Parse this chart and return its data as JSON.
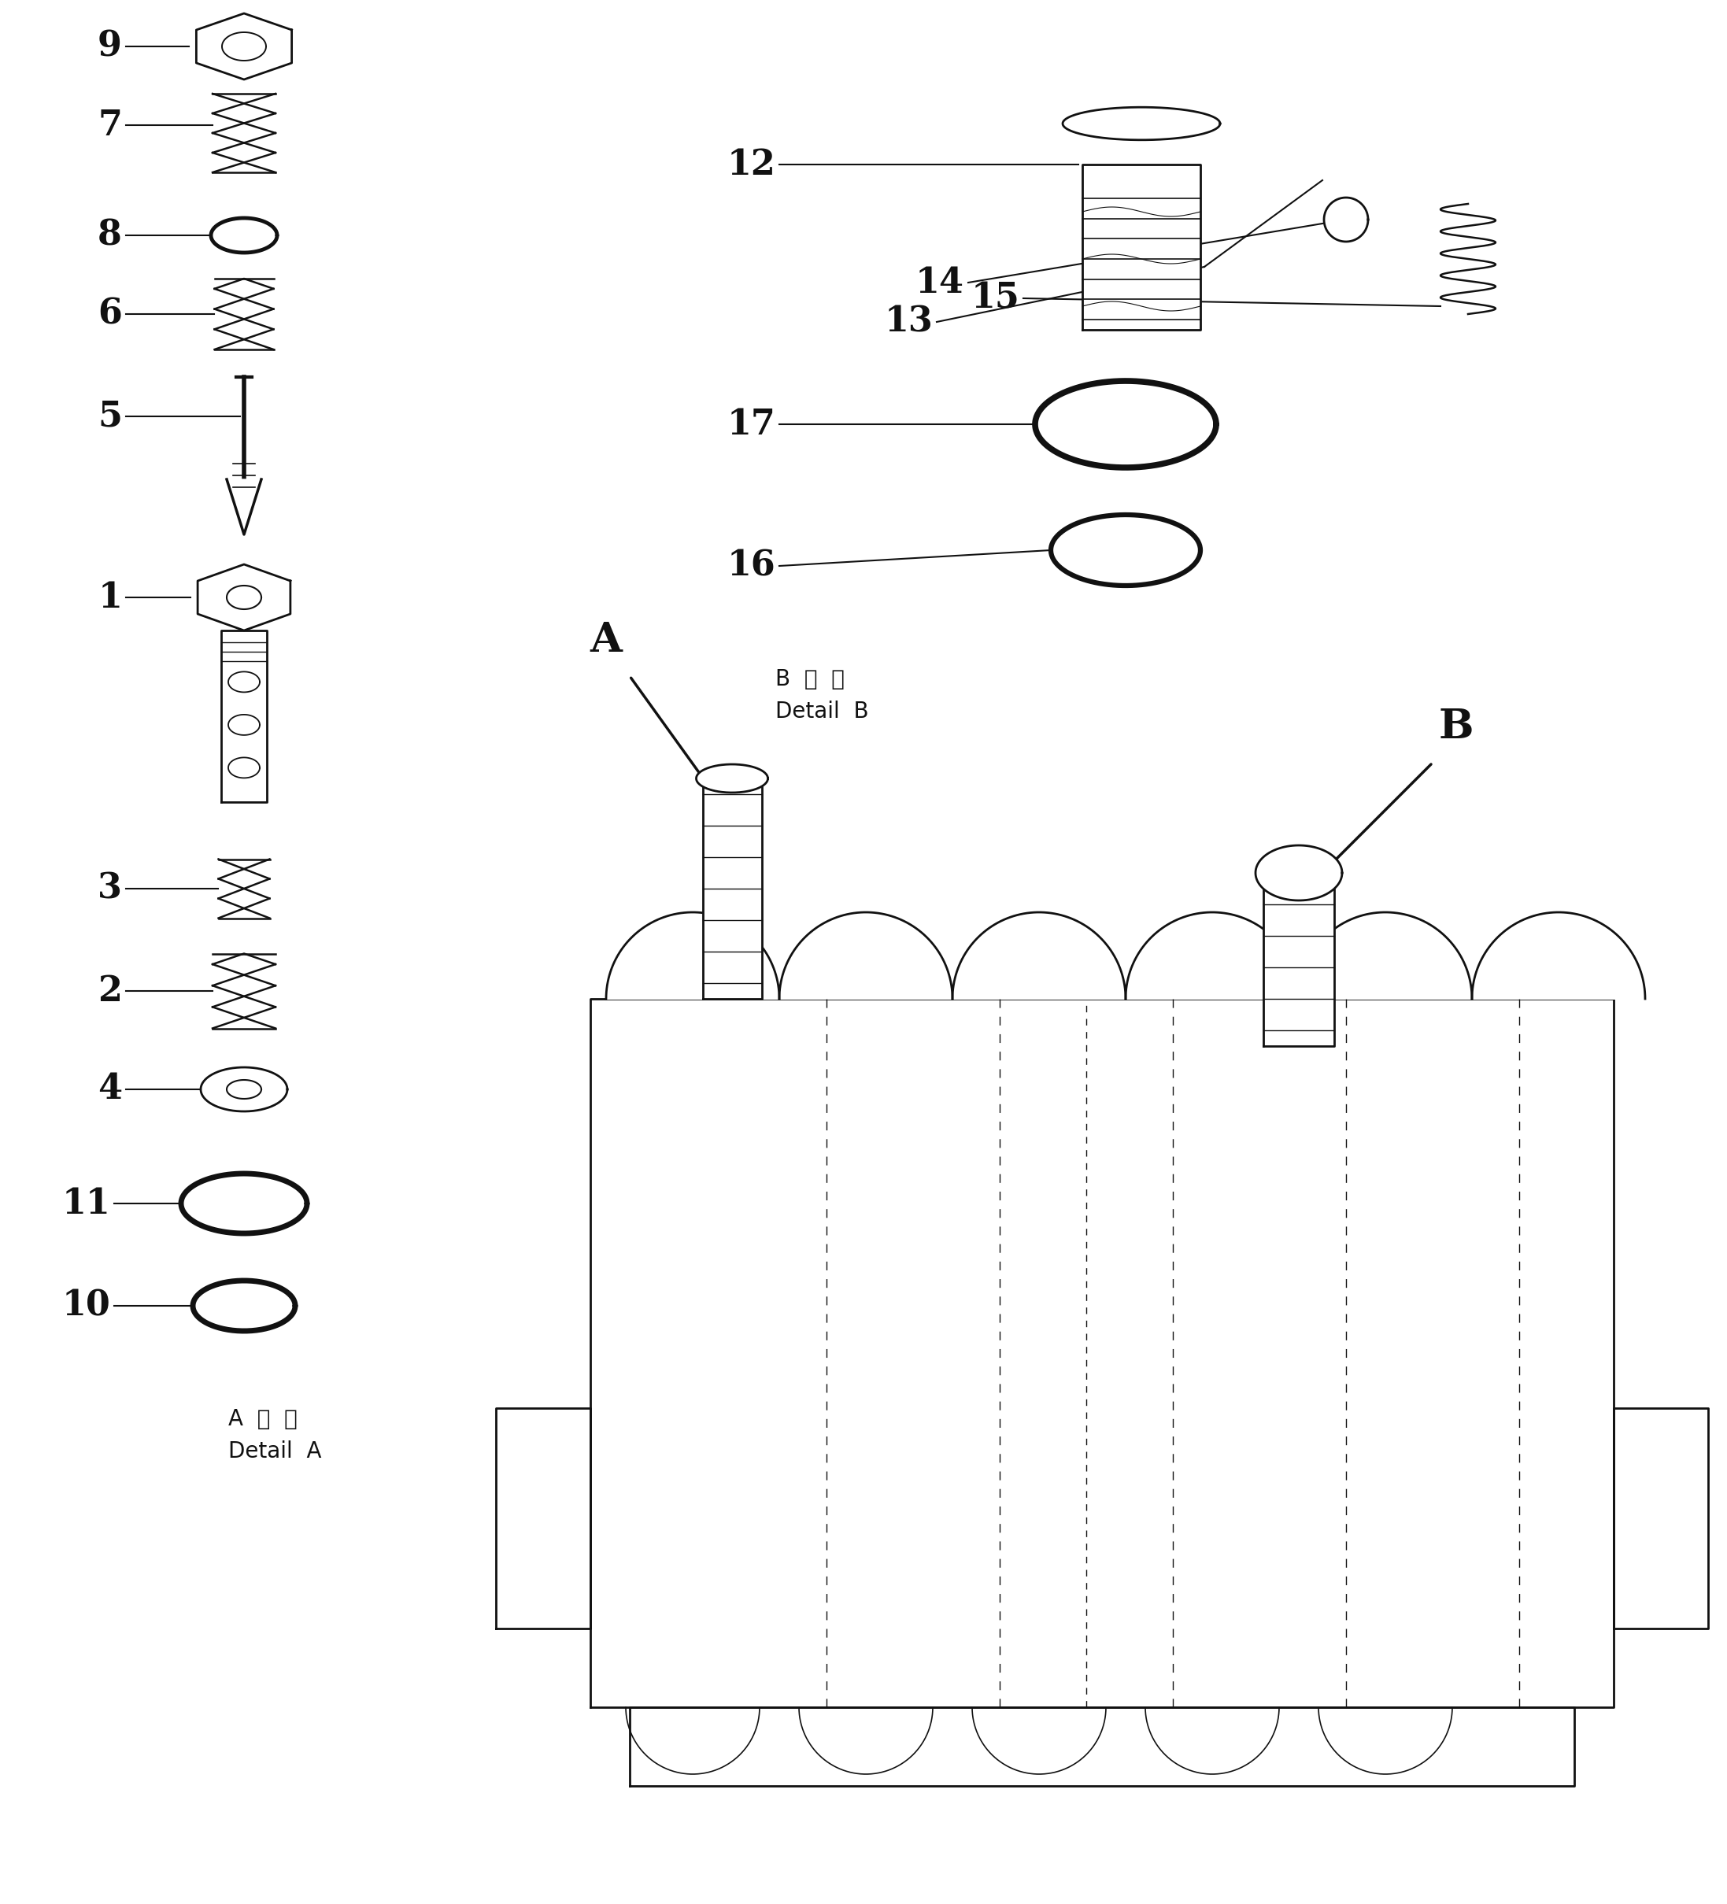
{
  "background_color": "#ffffff",
  "detail_a_label": "A  詳  細\nDetail  A",
  "detail_b_label": "B  詳  細\nDetail  B",
  "line_color": "#111111"
}
